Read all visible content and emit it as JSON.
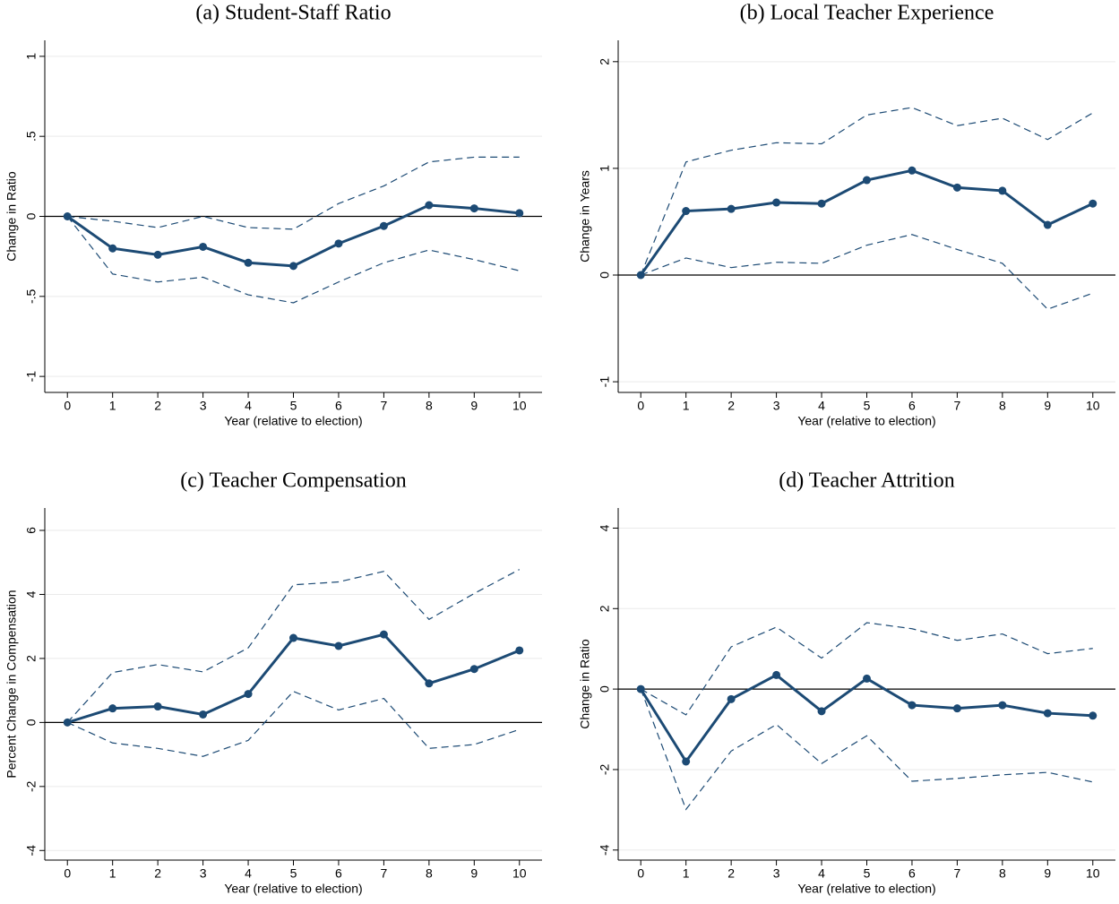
{
  "chart_data": [
    {
      "type": "line",
      "title": "(a)  Student-Staff Ratio",
      "x_label": "Year (relative to election)",
      "y_label": "Change in Ratio",
      "x": [
        0,
        1,
        2,
        3,
        4,
        5,
        6,
        7,
        8,
        9,
        10
      ],
      "xlim": [
        -0.5,
        10.5
      ],
      "xticks": [
        0,
        1,
        2,
        3,
        4,
        5,
        6,
        7,
        8,
        9,
        10
      ],
      "ylim": [
        -1.1,
        1.1
      ],
      "yticks": [
        -1,
        {
          "value": -0.5,
          "label": "-.5"
        },
        0,
        {
          "value": 0.5,
          "label": ".5"
        },
        1
      ],
      "grid": true,
      "zero_line": true,
      "series": [
        {
          "color": "#1c4a74",
          "style": "solid",
          "markers": true,
          "values": [
            0,
            -0.2,
            -0.24,
            -0.19,
            -0.29,
            -0.31,
            -0.17,
            -0.06,
            0.07,
            0.05,
            0.02
          ]
        },
        {
          "color": "#1c4a74",
          "style": "dashed",
          "markers": false,
          "values": [
            0,
            -0.03,
            -0.07,
            0,
            -0.07,
            -0.08,
            0.08,
            0.19,
            0.34,
            0.37,
            0.37
          ]
        },
        {
          "color": "#1c4a74",
          "style": "dashed",
          "markers": false,
          "values": [
            0,
            -0.36,
            -0.41,
            -0.38,
            -0.49,
            -0.54,
            -0.41,
            -0.29,
            -0.21,
            -0.27,
            -0.34
          ]
        }
      ]
    },
    {
      "type": "line",
      "title": "(b)  Local Teacher Experience",
      "x_label": "Year (relative to election)",
      "y_label": "Change in Years",
      "x": [
        0,
        1,
        2,
        3,
        4,
        5,
        6,
        7,
        8,
        9,
        10
      ],
      "xlim": [
        -0.5,
        10.5
      ],
      "xticks": [
        0,
        1,
        2,
        3,
        4,
        5,
        6,
        7,
        8,
        9,
        10
      ],
      "ylim": [
        -1.1,
        2.2
      ],
      "yticks": [
        -1,
        0,
        1,
        2
      ],
      "grid": true,
      "zero_line": true,
      "series": [
        {
          "color": "#1c4a74",
          "style": "solid",
          "markers": true,
          "values": [
            0,
            0.6,
            0.62,
            0.68,
            0.67,
            0.89,
            0.98,
            0.82,
            0.79,
            0.47,
            0.67
          ]
        },
        {
          "color": "#1c4a74",
          "style": "dashed",
          "markers": false,
          "values": [
            0,
            1.06,
            1.17,
            1.24,
            1.23,
            1.5,
            1.57,
            1.4,
            1.47,
            1.27,
            1.52
          ]
        },
        {
          "color": "#1c4a74",
          "style": "dashed",
          "markers": false,
          "values": [
            0,
            0.16,
            0.07,
            0.12,
            0.11,
            0.28,
            0.38,
            0.24,
            0.11,
            -0.32,
            -0.17
          ]
        }
      ]
    },
    {
      "type": "line",
      "title": "(c)  Teacher Compensation",
      "x_label": "Year (relative to election)",
      "y_label": "Percent Change in Compensation",
      "x": [
        0,
        1,
        2,
        3,
        4,
        5,
        6,
        7,
        8,
        9,
        10
      ],
      "xlim": [
        -0.5,
        10.5
      ],
      "xticks": [
        0,
        1,
        2,
        3,
        4,
        5,
        6,
        7,
        8,
        9,
        10
      ],
      "ylim": [
        -4.3,
        6.7
      ],
      "yticks": [
        -4,
        -2,
        0,
        2,
        4,
        6
      ],
      "grid": true,
      "zero_line": true,
      "series": [
        {
          "color": "#1c4a74",
          "style": "solid",
          "markers": true,
          "values": [
            0,
            0.44,
            0.5,
            0.25,
            0.89,
            2.64,
            2.39,
            2.75,
            1.22,
            1.67,
            2.25
          ]
        },
        {
          "color": "#1c4a74",
          "style": "dashed",
          "markers": false,
          "values": [
            0,
            1.56,
            1.81,
            1.58,
            2.33,
            4.3,
            4.39,
            4.72,
            3.22,
            4.03,
            4.78
          ]
        },
        {
          "color": "#1c4a74",
          "style": "dashed",
          "markers": false,
          "values": [
            0,
            -0.64,
            -0.81,
            -1.06,
            -0.56,
            0.97,
            0.39,
            0.75,
            -0.81,
            -0.69,
            -0.22
          ]
        }
      ]
    },
    {
      "type": "line",
      "title": "(d)  Teacher Attrition",
      "x_label": "Year (relative to election)",
      "y_label": "Change in Ratio",
      "x": [
        0,
        1,
        2,
        3,
        4,
        5,
        6,
        7,
        8,
        9,
        10
      ],
      "xlim": [
        -0.5,
        10.5
      ],
      "xticks": [
        0,
        1,
        2,
        3,
        4,
        5,
        6,
        7,
        8,
        9,
        10
      ],
      "ylim": [
        -4.25,
        4.5
      ],
      "yticks": [
        -4,
        -2,
        0,
        2,
        4
      ],
      "grid": true,
      "zero_line": true,
      "series": [
        {
          "color": "#1c4a74",
          "style": "solid",
          "markers": true,
          "values": [
            0,
            -1.8,
            -0.25,
            0.35,
            -0.55,
            0.26,
            -0.4,
            -0.48,
            -0.4,
            -0.6,
            -0.66
          ]
        },
        {
          "color": "#1c4a74",
          "style": "dashed",
          "markers": false,
          "values": [
            0,
            -0.64,
            1.05,
            1.54,
            0.77,
            1.65,
            1.5,
            1.21,
            1.37,
            0.88,
            1.01
          ]
        },
        {
          "color": "#1c4a74",
          "style": "dashed",
          "markers": false,
          "values": [
            0,
            -2.99,
            -1.54,
            -0.88,
            -1.85,
            -1.16,
            -2.29,
            -2.22,
            -2.13,
            -2.07,
            -2.31
          ]
        }
      ]
    }
  ]
}
